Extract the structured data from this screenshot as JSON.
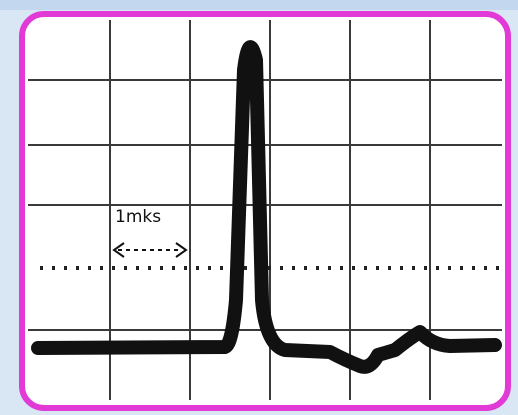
{
  "annotation": {
    "label": "1mks"
  }
}
